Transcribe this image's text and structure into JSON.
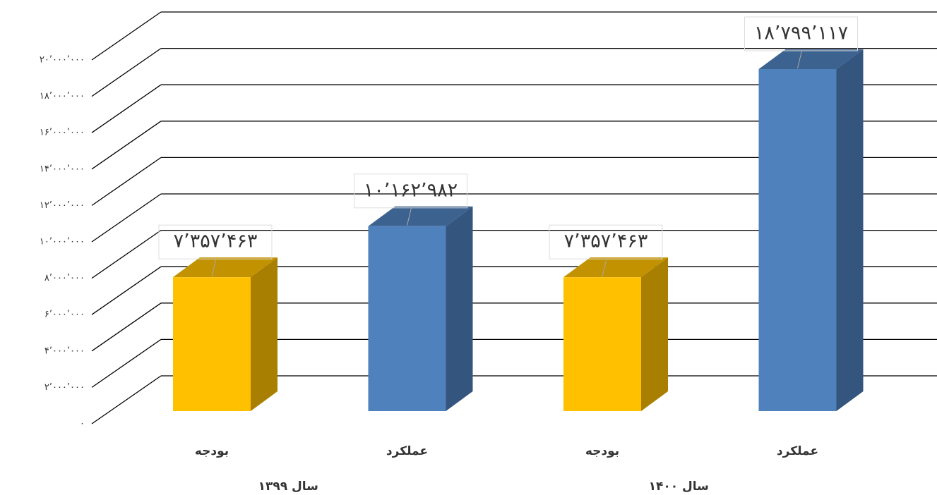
{
  "chart_data": {
    "type": "bar3d",
    "categories": [
      "بودجه",
      "عملکرد",
      "بودجه",
      "عملکرد"
    ],
    "groups": [
      "سال ۱۳۹۹",
      "سال ۱۴۰۰"
    ],
    "values": [
      7357463,
      10162982,
      7357463,
      18799117
    ],
    "value_labels": [
      "۷’۳۵۷’۴۶۳",
      "۱۰’۱۶۲’۹۸۲",
      "۷’۳۵۷’۴۶۳",
      "۱۸’۷۹۹’۱۱۷"
    ],
    "colors": [
      "#FFC000",
      "#4F81BD",
      "#FFC000",
      "#4F81BD"
    ],
    "ylim": [
      0,
      20000000
    ],
    "yticks": [
      {
        "value": 0,
        "label": "۰"
      },
      {
        "value": 2000000,
        "label": "۲’۰۰۰’۰۰۰"
      },
      {
        "value": 4000000,
        "label": "۴’۰۰۰’۰۰۰"
      },
      {
        "value": 6000000,
        "label": "۶’۰۰۰’۰۰۰"
      },
      {
        "value": 8000000,
        "label": "۸’۰۰۰’۰۰۰"
      },
      {
        "value": 10000000,
        "label": "۱۰’۰۰۰’۰۰۰"
      },
      {
        "value": 12000000,
        "label": "۱۲’۰۰۰’۰۰۰"
      },
      {
        "value": 14000000,
        "label": "۱۴’۰۰۰’۰۰۰"
      },
      {
        "value": 16000000,
        "label": "۱۶’۰۰۰’۰۰۰"
      },
      {
        "value": 18000000,
        "label": "۱۸’۰۰۰’۰۰۰"
      },
      {
        "value": 20000000,
        "label": "۲۰’۰۰۰’۰۰۰"
      }
    ],
    "grid": true
  }
}
